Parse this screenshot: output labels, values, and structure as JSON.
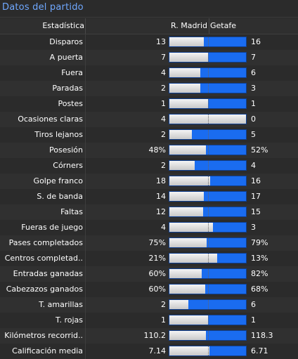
{
  "panel": {
    "title": "Datos del partido"
  },
  "header": {
    "stat": "Estadística",
    "home_team": "R. Madrid",
    "away_team": "Getafe"
  },
  "colors": {
    "home_bar": "#e0e0e0",
    "away_bar": "#1a6cf0",
    "title": "#6fa8ff"
  },
  "rows": [
    {
      "label": "Disparos",
      "home": "13",
      "away": "16",
      "home_share": 0.45
    },
    {
      "label": "A puerta",
      "home": "7",
      "away": "7",
      "home_share": 0.5
    },
    {
      "label": "Fuera",
      "home": "4",
      "away": "6",
      "home_share": 0.4
    },
    {
      "label": "Paradas",
      "home": "2",
      "away": "3",
      "home_share": 0.4
    },
    {
      "label": "Postes",
      "home": "1",
      "away": "1",
      "home_share": 0.5
    },
    {
      "label": "Ocasiones claras",
      "home": "4",
      "away": "0",
      "home_share": 1.0
    },
    {
      "label": "Tiros lejanos",
      "home": "2",
      "away": "5",
      "home_share": 0.29
    },
    {
      "label": "Posesión",
      "home": "48%",
      "away": "52%",
      "home_share": 0.48
    },
    {
      "label": "Córners",
      "home": "2",
      "away": "4",
      "home_share": 0.33
    },
    {
      "label": "Golpe franco",
      "home": "18",
      "away": "16",
      "home_share": 0.53
    },
    {
      "label": "S. de banda",
      "home": "14",
      "away": "17",
      "home_share": 0.45
    },
    {
      "label": "Faltas",
      "home": "12",
      "away": "15",
      "home_share": 0.44
    },
    {
      "label": "Fueras de juego",
      "home": "4",
      "away": "3",
      "home_share": 0.57
    },
    {
      "label": "Pases completados",
      "home": "75%",
      "away": "79%",
      "home_share": 0.49
    },
    {
      "label": "Centros completad..",
      "home": "21%",
      "away": "13%",
      "home_share": 0.62
    },
    {
      "label": "Entradas ganadas",
      "home": "60%",
      "away": "82%",
      "home_share": 0.42
    },
    {
      "label": "Cabezazos ganados",
      "home": "60%",
      "away": "68%",
      "home_share": 0.47
    },
    {
      "label": "T. amarillas",
      "home": "2",
      "away": "6",
      "home_share": 0.25
    },
    {
      "label": "T. rojas",
      "home": "1",
      "away": "1",
      "home_share": 0.5
    },
    {
      "label": "Kilómetros recorrid..",
      "home": "110.2",
      "away": "118.3",
      "home_share": 0.48
    },
    {
      "label": "Calificación media",
      "home": "7.14",
      "away": "6.71",
      "home_share": 0.52
    }
  ]
}
